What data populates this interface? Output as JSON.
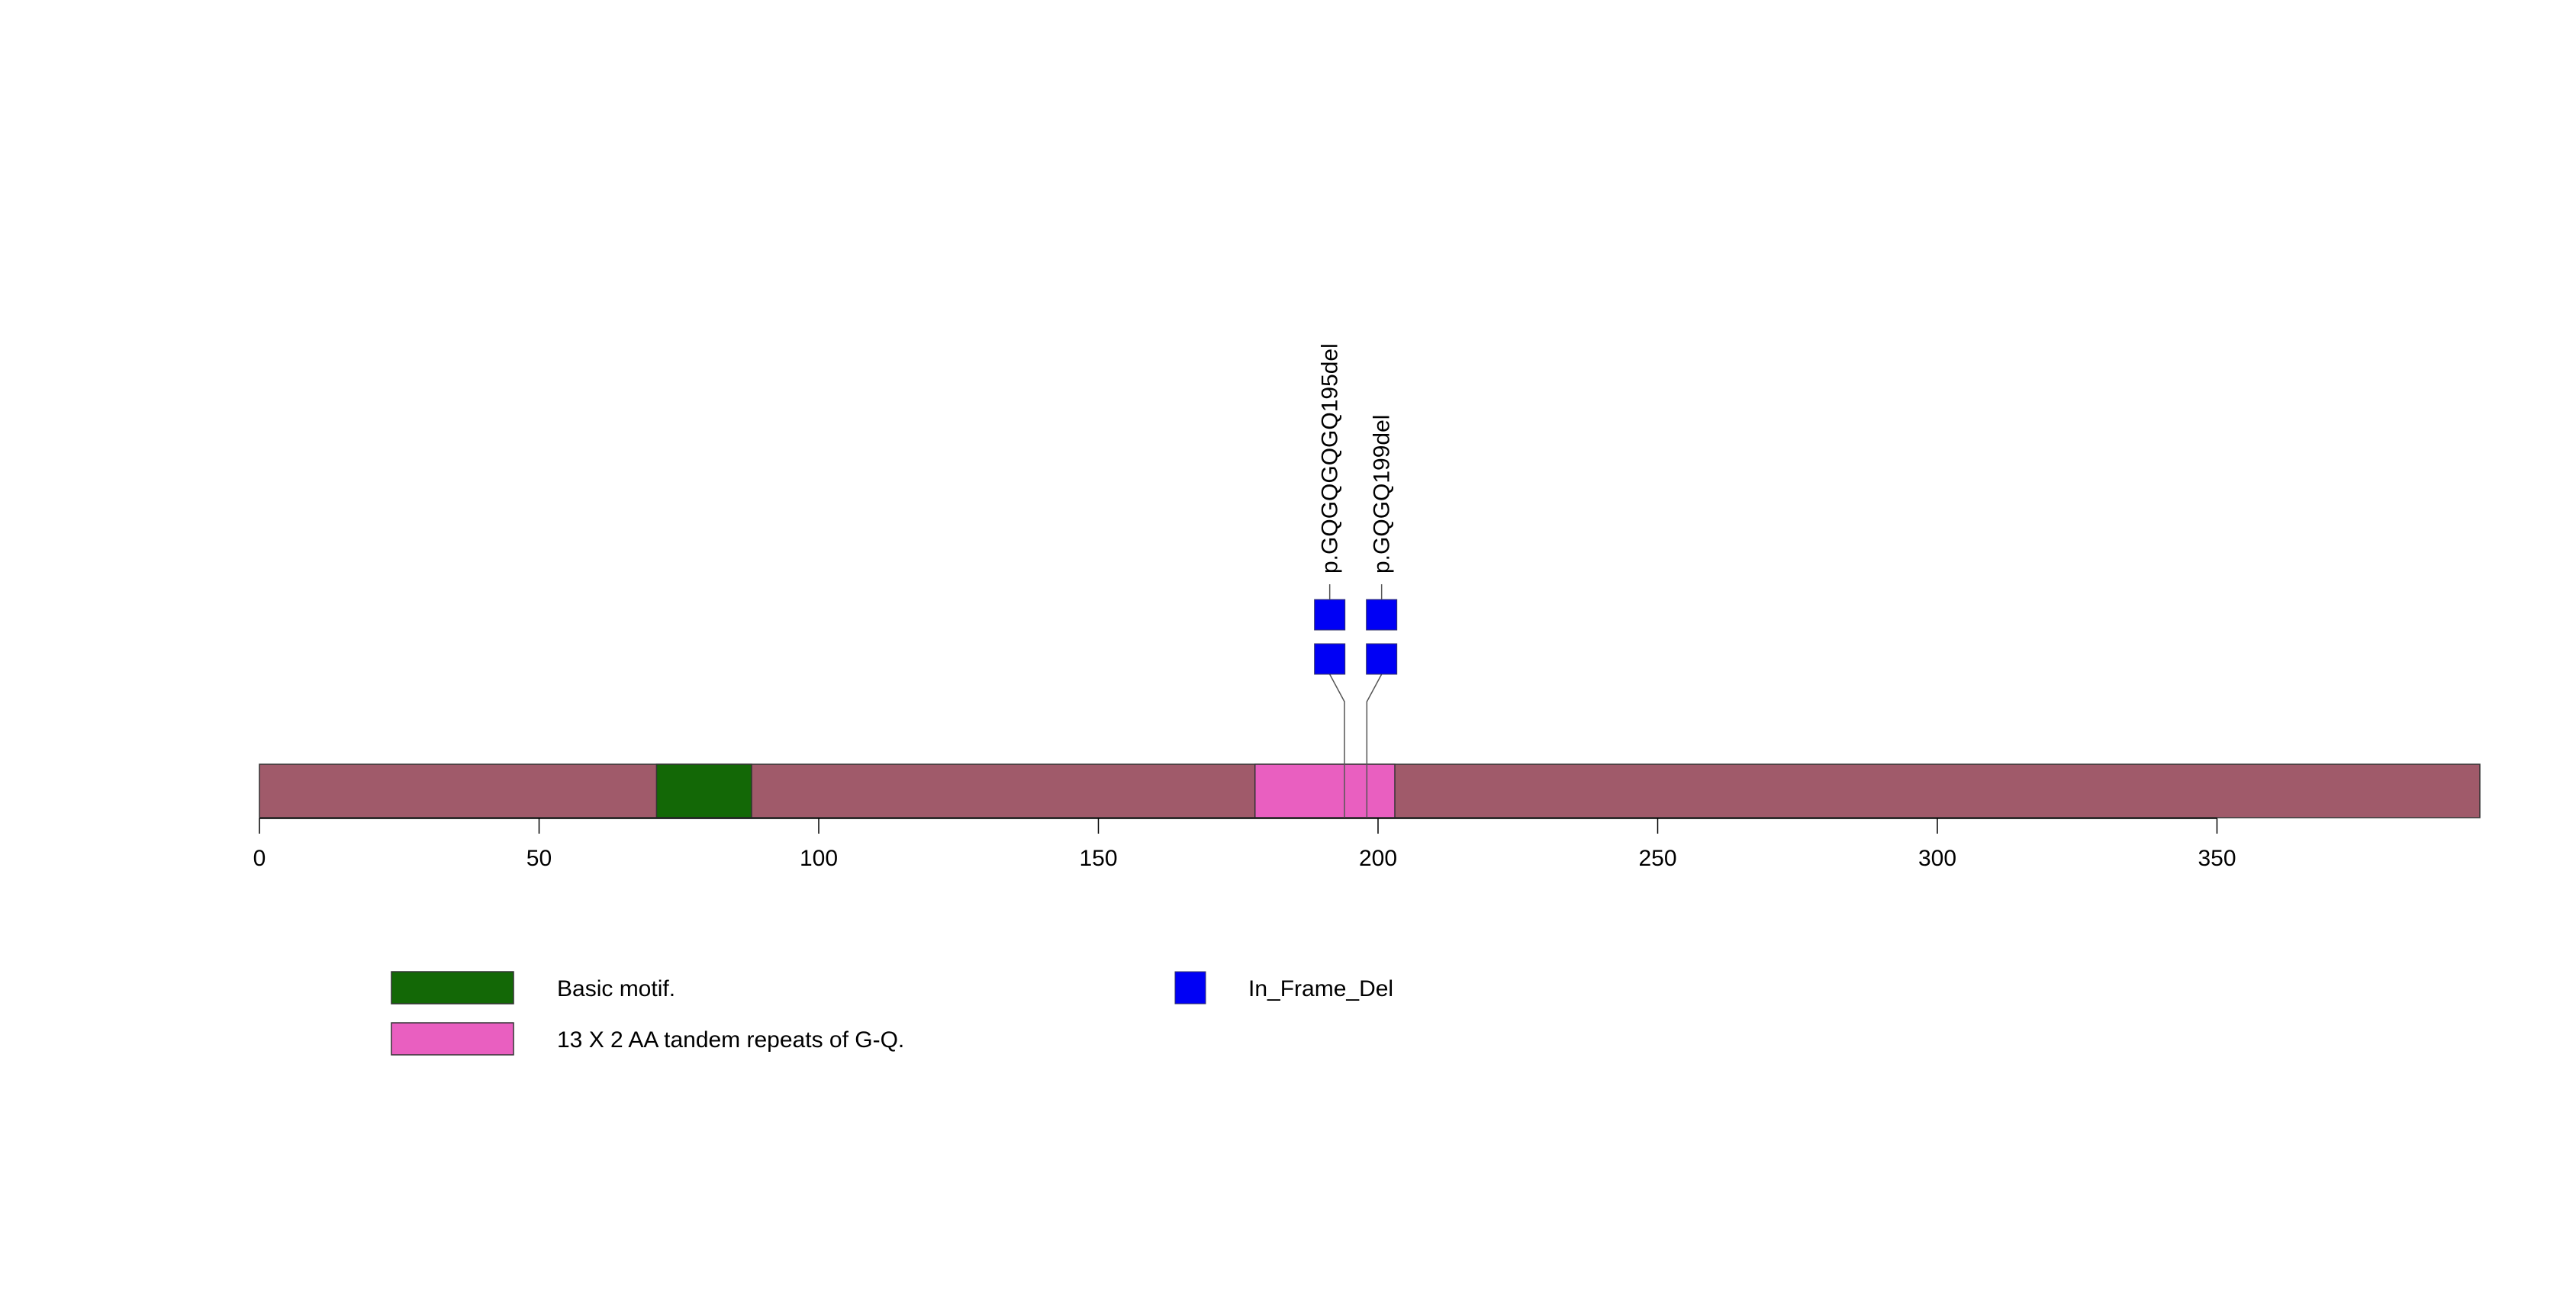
{
  "chart_data": {
    "type": "protein-lollipop",
    "protein_length": 397,
    "axis": {
      "range": [
        0,
        397
      ],
      "ticks": [
        0,
        50,
        100,
        150,
        200,
        250,
        300,
        350
      ],
      "tick_labels": [
        "0",
        "50",
        "100",
        "150",
        "200",
        "250",
        "300",
        "350"
      ]
    },
    "backbone_color": "#A05A6A",
    "domains": [
      {
        "name": "Basic motif.",
        "start": 71,
        "end": 88,
        "color": "#136806"
      },
      {
        "name": "13 X 2 AA tandem repeats of G-Q.",
        "start": 178,
        "end": 203,
        "color": "#E95FC0"
      }
    ],
    "mutations": [
      {
        "label": "p.GQGQGQGQ195del",
        "position": 194,
        "count": 2,
        "type": "In_Frame_Del"
      },
      {
        "label": "p.GQGQ199del",
        "position": 198,
        "count": 2,
        "type": "In_Frame_Del"
      }
    ],
    "mutation_types": [
      {
        "name": "In_Frame_Del",
        "color": "#0000F5"
      }
    ]
  }
}
